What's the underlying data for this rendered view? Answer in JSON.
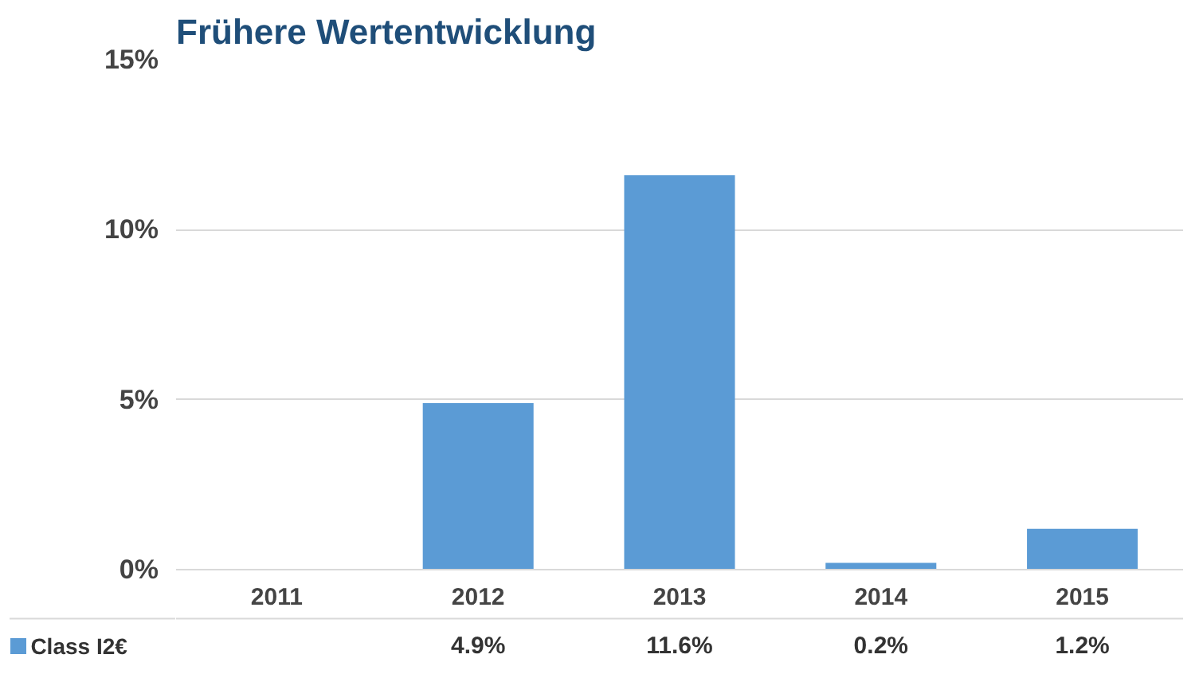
{
  "chart_data": {
    "type": "bar",
    "title": "Frühere Wertentwicklung",
    "categories": [
      "2011",
      "2012",
      "2013",
      "2014",
      "2015"
    ],
    "series": [
      {
        "name": "Class I2€",
        "color": "#5b9bd5",
        "values": [
          null,
          4.9,
          11.6,
          0.2,
          1.2
        ],
        "value_labels": [
          null,
          "4.9%",
          "11.6%",
          "0.2%",
          "1.2%"
        ]
      }
    ],
    "ylim": [
      0,
      15
    ],
    "yticks": [
      {
        "value": 0,
        "label": "0%"
      },
      {
        "value": 5,
        "label": "5%"
      },
      {
        "value": 10,
        "label": "10%"
      },
      {
        "value": 15,
        "label": "15%"
      }
    ],
    "grid": "y",
    "legend": "bottom"
  }
}
